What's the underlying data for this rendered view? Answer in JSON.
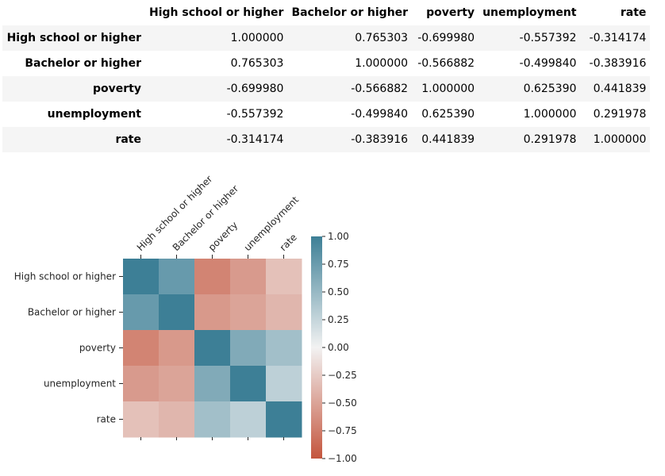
{
  "table": {
    "columns": [
      "High school or higher",
      "Bachelor or higher",
      "poverty",
      "unemployment",
      "rate"
    ],
    "rows": [
      {
        "label": "High school or higher",
        "values": [
          "1.000000",
          "0.765303",
          "-0.699980",
          "-0.557392",
          "-0.314174"
        ]
      },
      {
        "label": "Bachelor or higher",
        "values": [
          "0.765303",
          "1.000000",
          "-0.566882",
          "-0.499840",
          "-0.383916"
        ]
      },
      {
        "label": "poverty",
        "values": [
          "-0.699980",
          "-0.566882",
          "1.000000",
          "0.625390",
          "0.441839"
        ]
      },
      {
        "label": "unemployment",
        "values": [
          "-0.557392",
          "-0.499840",
          "0.625390",
          "1.000000",
          "0.291978"
        ]
      },
      {
        "label": "rate",
        "values": [
          "-0.314174",
          "-0.383916",
          "0.441839",
          "0.291978",
          "1.000000"
        ]
      }
    ]
  },
  "chart_data": {
    "type": "heatmap",
    "x_labels": [
      "High school or higher",
      "Bachelor or higher",
      "poverty",
      "unemployment",
      "rate"
    ],
    "y_labels": [
      "High school or higher",
      "Bachelor or higher",
      "poverty",
      "unemployment",
      "rate"
    ],
    "values": [
      [
        1.0,
        0.765303,
        -0.69998,
        -0.557392,
        -0.314174
      ],
      [
        0.765303,
        1.0,
        -0.566882,
        -0.49984,
        -0.383916
      ],
      [
        -0.69998,
        -0.566882,
        1.0,
        0.62539,
        0.441839
      ],
      [
        -0.557392,
        -0.49984,
        0.62539,
        1.0,
        0.291978
      ],
      [
        -0.314174,
        -0.383916,
        0.441839,
        0.291978,
        1.0
      ]
    ],
    "vmin": -1.0,
    "vmax": 1.0,
    "colorbar_ticks": [
      "1.00",
      "0.75",
      "0.50",
      "0.25",
      "0.00",
      "−0.25",
      "−0.50",
      "−0.75",
      "−1.00"
    ],
    "colorbar_tick_values": [
      1.0,
      0.75,
      0.5,
      0.25,
      0.0,
      -0.25,
      -0.5,
      -0.75,
      -1.0
    ],
    "colors": {
      "negative": "#c4553d",
      "middle": "#f2f2f2",
      "positive": "#3d7f96"
    }
  }
}
